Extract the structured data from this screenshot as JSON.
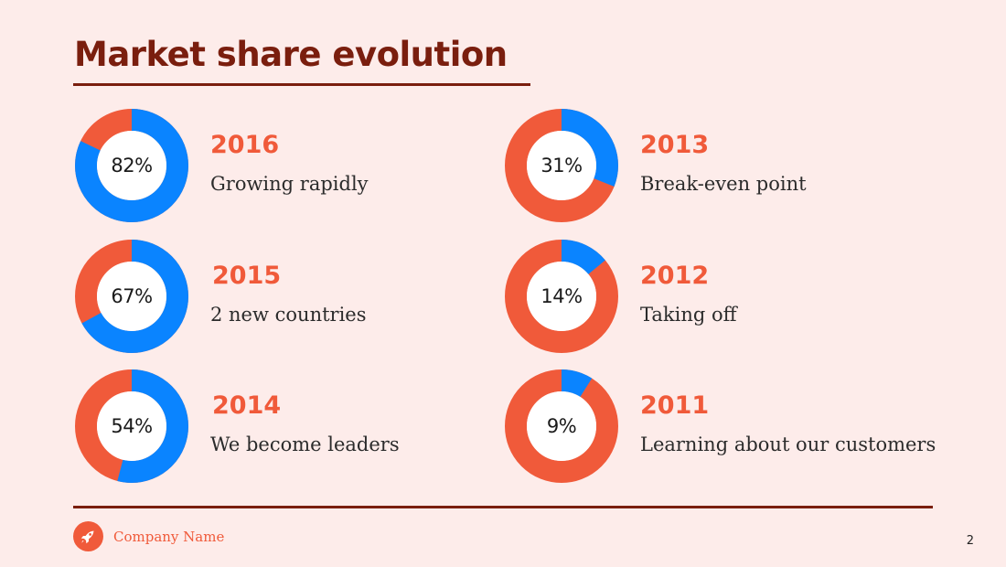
{
  "title": "Market share evolution",
  "colors": {
    "share": "#0a84ff",
    "rest": "#f05a3a",
    "accent": "#7a1e0e",
    "background": "#fdecea"
  },
  "chart_data": {
    "type": "pie",
    "variant": "donut",
    "title": "Market share evolution",
    "items": [
      {
        "year": "2016",
        "value": 82,
        "label": "82%",
        "description": "Growing rapidly"
      },
      {
        "year": "2015",
        "value": 67,
        "label": "67%",
        "description": "2 new countries"
      },
      {
        "year": "2014",
        "value": 54,
        "label": "54%",
        "description": "We become leaders"
      },
      {
        "year": "2013",
        "value": 31,
        "label": "31%",
        "description": "Break-even point"
      },
      {
        "year": "2012",
        "value": 14,
        "label": "14%",
        "description": "Taking off"
      },
      {
        "year": "2011",
        "value": 9,
        "label": "9%",
        "description": "Learning about our customers"
      }
    ]
  },
  "footer": {
    "company": "Company Name",
    "page": "2",
    "logo_icon": "rocket-icon"
  }
}
